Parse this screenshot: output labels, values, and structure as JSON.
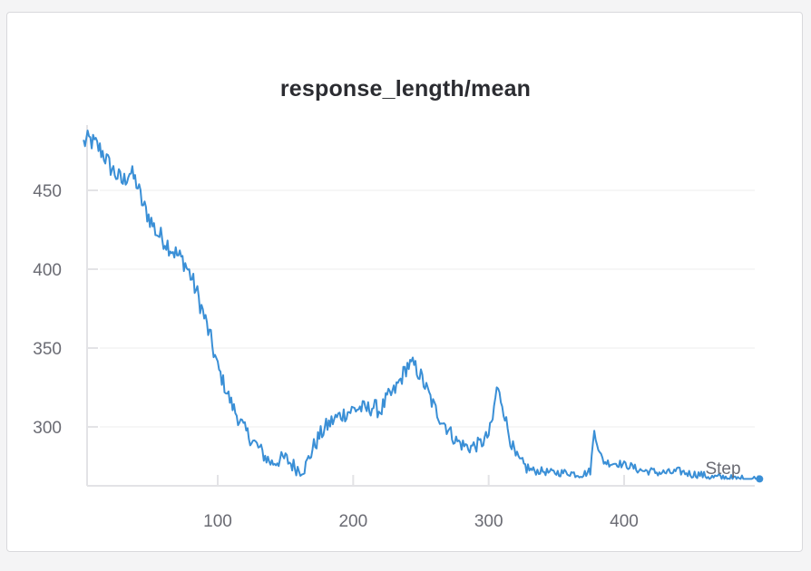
{
  "chart_data": {
    "type": "line",
    "title": "response_length/mean",
    "xlabel": "Step",
    "ylabel": "",
    "xlim": [
      1,
      500
    ],
    "ylim": [
      266,
      490
    ],
    "x_ticks": [
      100,
      200,
      300,
      400
    ],
    "y_ticks": [
      300,
      350,
      400,
      450
    ],
    "grid": true,
    "color": "#3a8fd6",
    "series": [
      {
        "values_anchor_x": [
          1,
          5,
          10,
          15,
          20,
          25,
          30,
          35,
          40,
          45,
          50,
          55,
          60,
          65,
          70,
          75,
          80,
          85,
          90,
          95,
          100,
          105,
          110,
          115,
          120,
          125,
          130,
          135,
          140,
          145,
          150,
          155,
          160,
          165,
          170,
          175,
          180,
          185,
          190,
          195,
          200,
          205,
          210,
          215,
          220,
          225,
          230,
          235,
          240,
          245,
          250,
          255,
          260,
          265,
          270,
          275,
          280,
          285,
          290,
          295,
          300,
          303,
          306,
          310,
          315,
          320,
          325,
          330,
          335,
          340,
          345,
          350,
          355,
          360,
          365,
          370,
          375,
          378,
          382,
          385,
          390,
          395,
          400,
          405,
          410,
          415,
          420,
          425,
          430,
          435,
          440,
          445,
          450,
          455,
          460,
          465,
          470,
          475,
          480,
          485,
          490,
          495,
          500
        ],
        "values_anchor_y": [
          480,
          482,
          479,
          474,
          466,
          460,
          455,
          462,
          455,
          440,
          432,
          423,
          419,
          414,
          409,
          405,
          396,
          384,
          370,
          355,
          338,
          326,
          315,
          306,
          298,
          292,
          287,
          281,
          277,
          279,
          280,
          276,
          273,
          275,
          286,
          294,
          300,
          304,
          307,
          309,
          311,
          312,
          311,
          313,
          310,
          318,
          322,
          330,
          339,
          339,
          332,
          322,
          312,
          305,
          299,
          292,
          289,
          287,
          288,
          290,
          295,
          305,
          325,
          315,
          295,
          281,
          276,
          273,
          272,
          272,
          271,
          271,
          271,
          271,
          270,
          270,
          272,
          298,
          283,
          278,
          277,
          277,
          276,
          275,
          273,
          272,
          272,
          271,
          271,
          271,
          272,
          271,
          270,
          270,
          269,
          268,
          268,
          268,
          267,
          267,
          267,
          267,
          267
        ]
      }
    ]
  }
}
